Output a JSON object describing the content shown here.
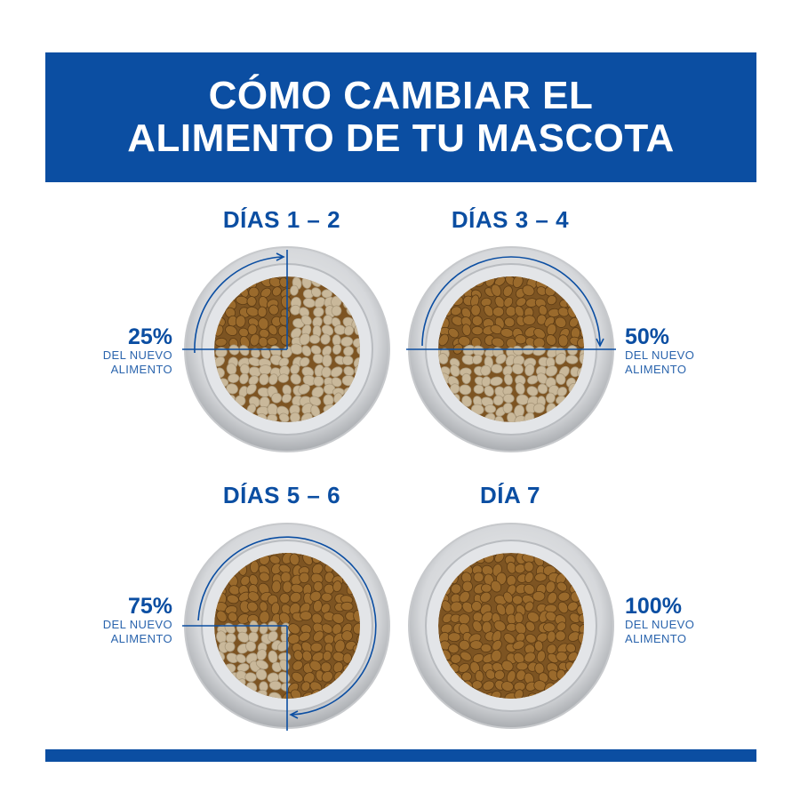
{
  "title": {
    "line1": "CÓMO CAMBIAR EL",
    "line2": "ALIMENTO DE TU MASCOTA"
  },
  "steps": [
    {
      "day_label": "DÍAS 1 – 2",
      "percent": "25%",
      "caption_line1": "DEL NUEVO",
      "caption_line2": "ALIMENTO",
      "new_food_fraction": 0.25
    },
    {
      "day_label": "DÍAS 3 – 4",
      "percent": "50%",
      "caption_line1": "DEL NUEVO",
      "caption_line2": "ALIMENTO",
      "new_food_fraction": 0.5
    },
    {
      "day_label": "DÍAS 5 – 6",
      "percent": "75%",
      "caption_line1": "DEL NUEVO",
      "caption_line2": "ALIMENTO",
      "new_food_fraction": 0.75
    },
    {
      "day_label": "DÍA 7",
      "percent": "100%",
      "caption_line1": "DEL NUEVO",
      "caption_line2": "ALIMENTO",
      "new_food_fraction": 1.0
    }
  ],
  "colors": {
    "brand_blue": "#0b4ea2",
    "new_food": "#9a6a2c",
    "old_food": "#c9b89a",
    "bowl_rim": "#c7c9cc"
  }
}
